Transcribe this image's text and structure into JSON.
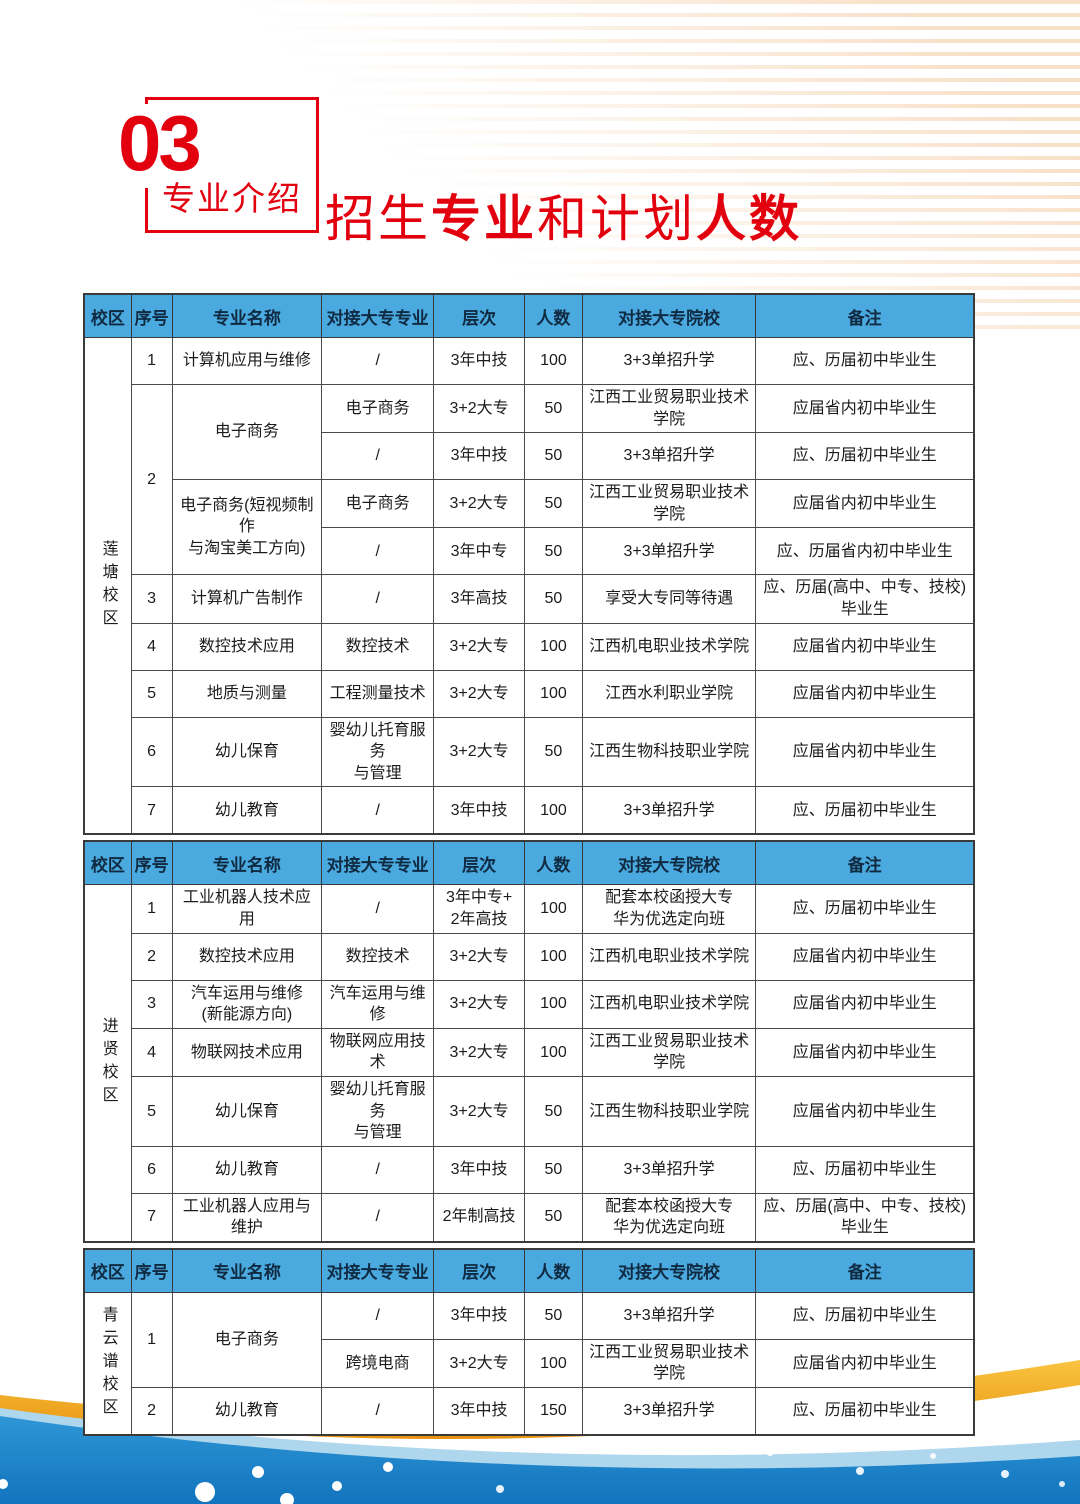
{
  "colors": {
    "accent_red": "#E2000F",
    "table_header_blue": "#4AA9DE",
    "wave_gold": "#F0A41E",
    "wave_blue": "#1E86CE"
  },
  "header": {
    "section_number": "03",
    "section_label": "专业介绍",
    "title_parts": [
      {
        "text": "招生",
        "bold": false
      },
      {
        "text": "专业",
        "bold": true
      },
      {
        "text": "和计划",
        "bold": false
      },
      {
        "text": "人数",
        "bold": true
      }
    ]
  },
  "table_columns": [
    "校区",
    "序号",
    "专业名称",
    "对接大专专业",
    "层次",
    "人数",
    "对接大专院校",
    "备注"
  ],
  "tables": [
    {
      "campus": "莲塘校区",
      "rows": [
        [
          {
            "k": "campus",
            "t": "莲塘校区",
            "rs": 10
          },
          {
            "k": "no",
            "t": "1"
          },
          {
            "k": "major",
            "t": "计算机应用与维修"
          },
          {
            "k": "cm",
            "t": "/"
          },
          {
            "k": "level",
            "t": "3年中技"
          },
          {
            "k": "count",
            "t": "100"
          },
          {
            "k": "college",
            "t": "3+3单招升学"
          },
          {
            "k": "note",
            "t": "应、历届初中毕业生"
          }
        ],
        [
          {
            "k": "no",
            "t": "2",
            "rs": 4
          },
          {
            "k": "major",
            "t": "电子商务",
            "rs": 2
          },
          {
            "k": "cm",
            "t": "电子商务"
          },
          {
            "k": "level",
            "t": "3+2大专"
          },
          {
            "k": "count",
            "t": "50"
          },
          {
            "k": "college",
            "t": "江西工业贸易职业技术学院"
          },
          {
            "k": "note",
            "t": "应届省内初中毕业生"
          }
        ],
        [
          {
            "k": "cm",
            "t": "/"
          },
          {
            "k": "level",
            "t": "3年中技"
          },
          {
            "k": "count",
            "t": "50"
          },
          {
            "k": "college",
            "t": "3+3单招升学"
          },
          {
            "k": "note",
            "t": "应、历届初中毕业生"
          }
        ],
        [
          {
            "k": "major",
            "t": "电子商务(短视频制作\n与淘宝美工方向)",
            "rs": 2
          },
          {
            "k": "cm",
            "t": "电子商务"
          },
          {
            "k": "level",
            "t": "3+2大专"
          },
          {
            "k": "count",
            "t": "50"
          },
          {
            "k": "college",
            "t": "江西工业贸易职业技术学院"
          },
          {
            "k": "note",
            "t": "应届省内初中毕业生"
          }
        ],
        [
          {
            "k": "cm",
            "t": "/"
          },
          {
            "k": "level",
            "t": "3年中专"
          },
          {
            "k": "count",
            "t": "50"
          },
          {
            "k": "college",
            "t": "3+3单招升学"
          },
          {
            "k": "note",
            "t": "应、历届省内初中毕业生"
          }
        ],
        [
          {
            "k": "no",
            "t": "3"
          },
          {
            "k": "major",
            "t": "计算机广告制作"
          },
          {
            "k": "cm",
            "t": "/"
          },
          {
            "k": "level",
            "t": "3年高技"
          },
          {
            "k": "count",
            "t": "50"
          },
          {
            "k": "college",
            "t": "享受大专同等待遇"
          },
          {
            "k": "note",
            "t": "应、历届(高中、中专、技校)毕业生"
          }
        ],
        [
          {
            "k": "no",
            "t": "4"
          },
          {
            "k": "major",
            "t": "数控技术应用"
          },
          {
            "k": "cm",
            "t": "数控技术"
          },
          {
            "k": "level",
            "t": "3+2大专"
          },
          {
            "k": "count",
            "t": "100"
          },
          {
            "k": "college",
            "t": "江西机电职业技术学院"
          },
          {
            "k": "note",
            "t": "应届省内初中毕业生"
          }
        ],
        [
          {
            "k": "no",
            "t": "5"
          },
          {
            "k": "major",
            "t": "地质与测量"
          },
          {
            "k": "cm",
            "t": "工程测量技术"
          },
          {
            "k": "level",
            "t": "3+2大专"
          },
          {
            "k": "count",
            "t": "100"
          },
          {
            "k": "college",
            "t": "江西水利职业学院"
          },
          {
            "k": "note",
            "t": "应届省内初中毕业生"
          }
        ],
        [
          {
            "k": "no",
            "t": "6"
          },
          {
            "k": "major",
            "t": "幼儿保育"
          },
          {
            "k": "cm",
            "t": "婴幼儿托育服务\n与管理"
          },
          {
            "k": "level",
            "t": "3+2大专"
          },
          {
            "k": "count",
            "t": "50"
          },
          {
            "k": "college",
            "t": "江西生物科技职业学院"
          },
          {
            "k": "note",
            "t": "应届省内初中毕业生"
          }
        ],
        [
          {
            "k": "no",
            "t": "7"
          },
          {
            "k": "major",
            "t": "幼儿教育"
          },
          {
            "k": "cm",
            "t": "/"
          },
          {
            "k": "level",
            "t": "3年中技"
          },
          {
            "k": "count",
            "t": "100"
          },
          {
            "k": "college",
            "t": "3+3单招升学"
          },
          {
            "k": "note",
            "t": "应、历届初中毕业生"
          }
        ]
      ]
    },
    {
      "campus": "进贤校区",
      "rows": [
        [
          {
            "k": "campus",
            "t": "进贤校区",
            "rs": 7
          },
          {
            "k": "no",
            "t": "1"
          },
          {
            "k": "major",
            "t": "工业机器人技术应用"
          },
          {
            "k": "cm",
            "t": "/"
          },
          {
            "k": "level",
            "t": "3年中专+\n2年高技"
          },
          {
            "k": "count",
            "t": "100"
          },
          {
            "k": "college",
            "t": "配套本校函授大专\n华为优选定向班"
          },
          {
            "k": "note",
            "t": "应、历届初中毕业生"
          }
        ],
        [
          {
            "k": "no",
            "t": "2"
          },
          {
            "k": "major",
            "t": "数控技术应用"
          },
          {
            "k": "cm",
            "t": "数控技术"
          },
          {
            "k": "level",
            "t": "3+2大专"
          },
          {
            "k": "count",
            "t": "100"
          },
          {
            "k": "college",
            "t": "江西机电职业技术学院"
          },
          {
            "k": "note",
            "t": "应届省内初中毕业生"
          }
        ],
        [
          {
            "k": "no",
            "t": "3"
          },
          {
            "k": "major",
            "t": "汽车运用与维修\n(新能源方向)"
          },
          {
            "k": "cm",
            "t": "汽车运用与维修"
          },
          {
            "k": "level",
            "t": "3+2大专"
          },
          {
            "k": "count",
            "t": "100"
          },
          {
            "k": "college",
            "t": "江西机电职业技术学院"
          },
          {
            "k": "note",
            "t": "应届省内初中毕业生"
          }
        ],
        [
          {
            "k": "no",
            "t": "4"
          },
          {
            "k": "major",
            "t": "物联网技术应用"
          },
          {
            "k": "cm",
            "t": "物联网应用技术"
          },
          {
            "k": "level",
            "t": "3+2大专"
          },
          {
            "k": "count",
            "t": "100"
          },
          {
            "k": "college",
            "t": "江西工业贸易职业技术学院"
          },
          {
            "k": "note",
            "t": "应届省内初中毕业生"
          }
        ],
        [
          {
            "k": "no",
            "t": "5"
          },
          {
            "k": "major",
            "t": "幼儿保育"
          },
          {
            "k": "cm",
            "t": "婴幼儿托育服务\n与管理"
          },
          {
            "k": "level",
            "t": "3+2大专"
          },
          {
            "k": "count",
            "t": "50"
          },
          {
            "k": "college",
            "t": "江西生物科技职业学院"
          },
          {
            "k": "note",
            "t": "应届省内初中毕业生"
          }
        ],
        [
          {
            "k": "no",
            "t": "6"
          },
          {
            "k": "major",
            "t": "幼儿教育"
          },
          {
            "k": "cm",
            "t": "/"
          },
          {
            "k": "level",
            "t": "3年中技"
          },
          {
            "k": "count",
            "t": "50"
          },
          {
            "k": "college",
            "t": "3+3单招升学"
          },
          {
            "k": "note",
            "t": "应、历届初中毕业生"
          }
        ],
        [
          {
            "k": "no",
            "t": "7"
          },
          {
            "k": "major",
            "t": "工业机器人应用与维护"
          },
          {
            "k": "cm",
            "t": "/"
          },
          {
            "k": "level",
            "t": "2年制高技"
          },
          {
            "k": "count",
            "t": "50"
          },
          {
            "k": "college",
            "t": "配套本校函授大专\n华为优选定向班"
          },
          {
            "k": "note",
            "t": "应、历届(高中、中专、技校)毕业生"
          }
        ]
      ]
    },
    {
      "campus": "青云谱校区",
      "rows": [
        [
          {
            "k": "campus",
            "t": "青云谱校区",
            "rs": 3
          },
          {
            "k": "no",
            "t": "1",
            "rs": 2
          },
          {
            "k": "major",
            "t": "电子商务",
            "rs": 2
          },
          {
            "k": "cm",
            "t": "/"
          },
          {
            "k": "level",
            "t": "3年中技"
          },
          {
            "k": "count",
            "t": "50"
          },
          {
            "k": "college",
            "t": "3+3单招升学"
          },
          {
            "k": "note",
            "t": "应、历届初中毕业生"
          }
        ],
        [
          {
            "k": "cm",
            "t": "跨境电商"
          },
          {
            "k": "level",
            "t": "3+2大专"
          },
          {
            "k": "count",
            "t": "100"
          },
          {
            "k": "college",
            "t": "江西工业贸易职业技术学院"
          },
          {
            "k": "note",
            "t": "应届省内初中毕业生"
          }
        ],
        [
          {
            "k": "no",
            "t": "2"
          },
          {
            "k": "major",
            "t": "幼儿教育"
          },
          {
            "k": "cm",
            "t": "/"
          },
          {
            "k": "level",
            "t": "3年中技"
          },
          {
            "k": "count",
            "t": "150"
          },
          {
            "k": "college",
            "t": "3+3单招升学"
          },
          {
            "k": "note",
            "t": "应、历届初中毕业生"
          }
        ]
      ]
    }
  ]
}
